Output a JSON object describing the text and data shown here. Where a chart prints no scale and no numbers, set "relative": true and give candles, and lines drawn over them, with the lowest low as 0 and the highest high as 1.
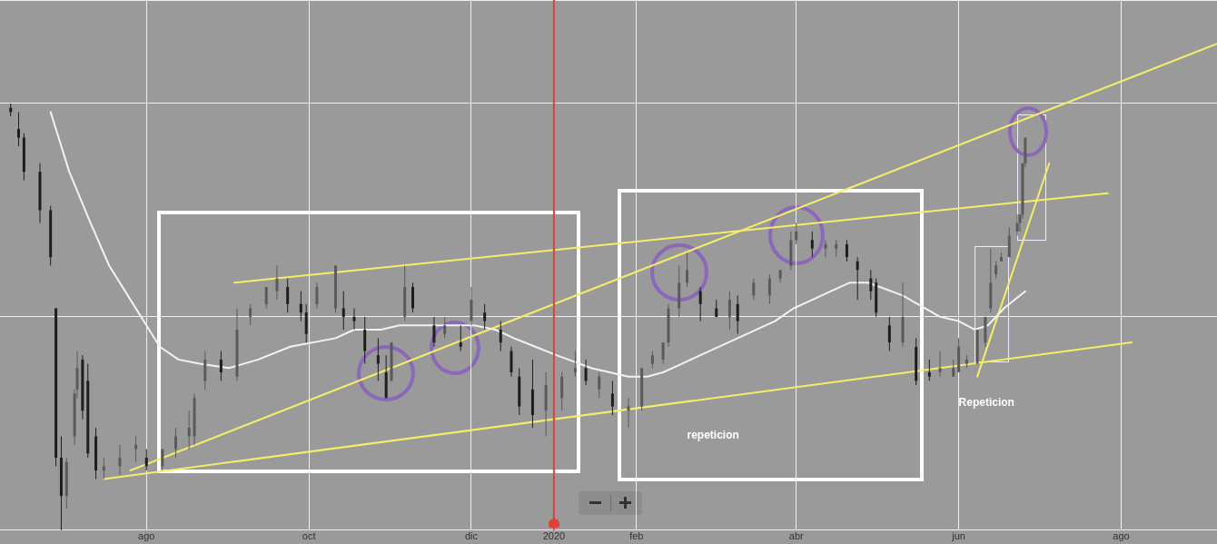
{
  "chart_data": {
    "type": "candlestick",
    "relative": true,
    "grid": true,
    "legend": false,
    "tick_labels": "x",
    "marker": "none",
    "xlim": [
      "2019-06-07",
      "2020-09-06"
    ],
    "xticks": [
      {
        "value": "2019-08-01",
        "label": "ago"
      },
      {
        "value": "2019-10-01",
        "label": "oct"
      },
      {
        "value": "2019-12-01",
        "label": "dic"
      },
      {
        "value": "2020-01-01",
        "label": "2020"
      },
      {
        "value": "2020-02-01",
        "label": "feb"
      },
      {
        "value": "2020-04-01",
        "label": "abr"
      },
      {
        "value": "2020-06-01",
        "label": "jun"
      },
      {
        "value": "2020-08-01",
        "label": "ago"
      }
    ],
    "ref_lines": [
      {
        "axis": "x",
        "value": "2020-01-01",
        "color": "#e0403a"
      }
    ],
    "annotations": [
      "repeticion",
      "Repeticion"
    ],
    "series": [
      {
        "type": "line",
        "color": "#f2f2f2",
        "x": [
          "2019-06-26",
          "2019-06-29",
          "2019-07-03",
          "2019-07-11",
          "2019-07-18",
          "2019-07-26",
          "2019-08-02",
          "2019-08-06",
          "2019-08-13",
          "2019-08-21",
          "2019-09-01",
          "2019-09-12",
          "2019-09-24",
          "2019-10-11",
          "2019-10-18",
          "2019-10-28",
          "2019-11-04",
          "2019-11-18",
          "2019-12-02",
          "2019-12-10",
          "2019-12-17",
          "2019-12-25",
          "2020-01-02",
          "2020-01-15",
          "2020-01-29",
          "2020-02-05",
          "2020-02-11",
          "2020-02-18",
          "2020-02-25",
          "2020-03-10",
          "2020-03-24",
          "2020-03-31",
          "2020-04-07",
          "2020-04-14",
          "2020-04-21",
          "2020-04-28",
          "2020-05-11",
          "2020-05-25",
          "2020-06-01",
          "2020-06-07",
          "2020-06-12",
          "2020-06-18",
          "2020-06-26"
        ],
        "values": [
          0.98,
          0.92,
          0.84,
          0.72,
          0.62,
          0.54,
          0.47,
          0.43,
          0.4,
          0.39,
          0.38,
          0.4,
          0.43,
          0.45,
          0.47,
          0.47,
          0.48,
          0.48,
          0.48,
          0.47,
          0.45,
          0.43,
          0.41,
          0.38,
          0.36,
          0.36,
          0.37,
          0.39,
          0.41,
          0.45,
          0.49,
          0.52,
          0.54,
          0.56,
          0.58,
          0.58,
          0.55,
          0.5,
          0.49,
          0.47,
          0.48,
          0.52,
          0.56
        ]
      },
      {
        "type": "line",
        "color": "#f7ec6a",
        "x": [
          "2019-07-16",
          "2020-08-05"
        ],
        "values": [
          0.12,
          0.44
        ]
      },
      {
        "type": "line",
        "color": "#f7ec6a",
        "x": [
          "2019-07-26",
          "2020-09-06"
        ],
        "values": [
          0.14,
          1.14
        ]
      },
      {
        "type": "line",
        "color": "#f7ec6a",
        "x": [
          "2019-09-03",
          "2020-07-27"
        ],
        "values": [
          0.58,
          0.79
        ]
      },
      {
        "type": "line",
        "color": "#f7ec6a",
        "x": [
          "2020-06-08",
          "2020-07-05"
        ],
        "values": [
          0.36,
          0.86
        ]
      },
      {
        "type": "candlestick",
        "colors": [
          "#1e1e1e",
          "#1e1e1e",
          "#1e1e1e",
          "#1e1e1e",
          "#1e1e1e",
          "#1e1e1e",
          "#1e1e1e",
          "#5a5a5a",
          "#5a5a5a",
          "#5a5a5a",
          "#1e1e1e",
          "#1e1e1e",
          "#1e1e1e",
          "#5a5a5a",
          "#5a5a5a",
          "#5a5a5a",
          "#1e1e1e",
          "#5a5a5a",
          "#5a5a5a",
          "#5a5a5a",
          "#5a5a5a",
          "#5a5a5a",
          "#1e1e1e",
          "#5a5a5a",
          "#5a5a5a",
          "#5a5a5a",
          "#5a5a5a",
          "#1e1e1e",
          "#1e1e1e",
          "#1e1e1e",
          "#5a5a5a",
          "#5a5a5a",
          "#1e1e1e",
          "#1e1e1e",
          "#1e1e1e",
          "#1e1e1e",
          "#1e1e1e",
          "#5a5a5a",
          "#5a5a5a",
          "#1e1e1e",
          "#1e1e1e",
          "#5a5a5a",
          "#1e1e1e",
          "#5a5a5a",
          "#1e1e1e",
          "#1e1e1e",
          "#1e1e1e",
          "#1e1e1e",
          "#1e1e1e",
          "#5a5a5a",
          "#5a5a5a",
          "#5a5a5a",
          "#1e1e1e",
          "#5a5a5a",
          "#1e1e1e",
          "#5a5a5a",
          "#5a5a5a",
          "#5a5a5a",
          "#5a5a5a",
          "#5a5a5a",
          "#5a5a5a",
          "#5a5a5a",
          "#1e1e1e",
          "#1e1e1e",
          "#5a5a5a",
          "#1e1e1e",
          "#5a5a5a",
          "#5a5a5a",
          "#5a5a5a",
          "#5a5a5a",
          "#5a5a5a",
          "#1e1e1e",
          "#5a5a5a",
          "#5a5a5a",
          "#1e1e1e",
          "#1e1e1e",
          "#1e1e1e",
          "#1e1e1e",
          "#1e1e1e",
          "#5a5a5a",
          "#1e1e1e",
          "#1e1e1e",
          "#5a5a5a",
          "#5a5a5a",
          "#5a5a5a",
          "#5a5a5a",
          "#5a5a5a",
          "#5a5a5a",
          "#5a5a5a",
          "#5a5a5a",
          "#5a5a5a",
          "#5a5a5a",
          "#5a5a5a",
          "#5a5a5a",
          "#5a5a5a",
          "#5a5a5a"
        ],
        "x": [
          "2019-06-11",
          "2019-06-14",
          "2019-06-16",
          "2019-06-22",
          "2019-06-26",
          "2019-06-28",
          "2019-06-30",
          "2019-07-02",
          "2019-07-05",
          "2019-07-06",
          "2019-07-08",
          "2019-07-10",
          "2019-07-13",
          "2019-07-16",
          "2019-07-22",
          "2019-07-28",
          "2019-08-01",
          "2019-08-07",
          "2019-08-12",
          "2019-08-17",
          "2019-08-19",
          "2019-08-23",
          "2019-08-29",
          "2019-09-04",
          "2019-09-09",
          "2019-09-15",
          "2019-09-19",
          "2019-09-23",
          "2019-09-28",
          "2019-09-30",
          "2019-10-04",
          "2019-10-11",
          "2019-10-14",
          "2019-10-18",
          "2019-10-22",
          "2019-10-27",
          "2019-10-30",
          "2019-11-01",
          "2019-11-06",
          "2019-11-09",
          "2019-11-17",
          "2019-11-21",
          "2019-11-27",
          "2019-12-01",
          "2019-12-06",
          "2019-12-12",
          "2019-12-16",
          "2019-12-19",
          "2019-12-24",
          "2019-12-29",
          "2020-01-04",
          "2020-01-09",
          "2020-01-13",
          "2020-01-18",
          "2020-01-23",
          "2020-01-29",
          "2020-02-03",
          "2020-02-07",
          "2020-02-11",
          "2020-02-13",
          "2020-02-17",
          "2020-02-20",
          "2020-02-25",
          "2020-03-02",
          "2020-03-07",
          "2020-03-10",
          "2020-03-16",
          "2020-03-22",
          "2020-03-26",
          "2020-03-30",
          "2020-04-01",
          "2020-04-07",
          "2020-04-12",
          "2020-04-16",
          "2020-04-20",
          "2020-04-24",
          "2020-04-29",
          "2020-05-01",
          "2020-05-06",
          "2020-05-11",
          "2020-05-16",
          "2020-05-21",
          "2020-05-25",
          "2020-05-30",
          "2020-06-01",
          "2020-06-04",
          "2020-06-08",
          "2020-06-11",
          "2020-06-13",
          "2020-06-15",
          "2020-06-17",
          "2020-06-20",
          "2020-06-23",
          "2020-06-24",
          "2020-06-25",
          "2020-06-26"
        ],
        "ohlc": [
          [
            0.99,
            1.0,
            0.97,
            0.98
          ],
          [
            0.94,
            0.98,
            0.9,
            0.92
          ],
          [
            0.92,
            0.93,
            0.82,
            0.84
          ],
          [
            0.84,
            0.86,
            0.72,
            0.75
          ],
          [
            0.75,
            0.76,
            0.62,
            0.64
          ],
          [
            0.52,
            0.52,
            0.15,
            0.17
          ],
          [
            0.17,
            0.22,
            0.0,
            0.08
          ],
          [
            0.08,
            0.17,
            0.05,
            0.16
          ],
          [
            0.22,
            0.33,
            0.2,
            0.32
          ],
          [
            0.33,
            0.42,
            0.31,
            0.38
          ],
          [
            0.4,
            0.41,
            0.26,
            0.28
          ],
          [
            0.35,
            0.39,
            0.17,
            0.18
          ],
          [
            0.22,
            0.24,
            0.12,
            0.14
          ],
          [
            0.14,
            0.17,
            0.12,
            0.15
          ],
          [
            0.15,
            0.2,
            0.13,
            0.17
          ],
          [
            0.19,
            0.22,
            0.16,
            0.2
          ],
          [
            0.17,
            0.19,
            0.14,
            0.15
          ],
          [
            0.15,
            0.19,
            0.14,
            0.19
          ],
          [
            0.19,
            0.24,
            0.17,
            0.22
          ],
          [
            0.22,
            0.28,
            0.19,
            0.24
          ],
          [
            0.22,
            0.32,
            0.2,
            0.31
          ],
          [
            0.35,
            0.42,
            0.33,
            0.4
          ],
          [
            0.4,
            0.42,
            0.35,
            0.37
          ],
          [
            0.36,
            0.52,
            0.35,
            0.47
          ],
          [
            0.5,
            0.53,
            0.48,
            0.52
          ],
          [
            0.53,
            0.57,
            0.52,
            0.57
          ],
          [
            0.56,
            0.62,
            0.54,
            0.59
          ],
          [
            0.57,
            0.59,
            0.51,
            0.53
          ],
          [
            0.53,
            0.56,
            0.49,
            0.51
          ],
          [
            0.51,
            0.53,
            0.44,
            0.46
          ],
          [
            0.53,
            0.58,
            0.52,
            0.57
          ],
          [
            0.52,
            0.62,
            0.51,
            0.62
          ],
          [
            0.52,
            0.56,
            0.47,
            0.5
          ],
          [
            0.5,
            0.52,
            0.47,
            0.49
          ],
          [
            0.47,
            0.5,
            0.39,
            0.42
          ],
          [
            0.41,
            0.45,
            0.35,
            0.39
          ],
          [
            0.37,
            0.41,
            0.31,
            0.31
          ],
          [
            0.35,
            0.44,
            0.35,
            0.44
          ],
          [
            0.5,
            0.62,
            0.49,
            0.57
          ],
          [
            0.57,
            0.58,
            0.51,
            0.52
          ],
          [
            0.48,
            0.5,
            0.43,
            0.44
          ],
          [
            0.46,
            0.5,
            0.45,
            0.48
          ],
          [
            0.44,
            0.48,
            0.42,
            0.43
          ],
          [
            0.49,
            0.57,
            0.48,
            0.54
          ],
          [
            0.51,
            0.53,
            0.47,
            0.49
          ],
          [
            0.47,
            0.49,
            0.42,
            0.44
          ],
          [
            0.42,
            0.43,
            0.36,
            0.37
          ],
          [
            0.36,
            0.38,
            0.27,
            0.29
          ],
          [
            0.33,
            0.4,
            0.24,
            0.27
          ],
          [
            0.28,
            0.37,
            0.22,
            0.34
          ],
          [
            0.31,
            0.37,
            0.28,
            0.36
          ],
          [
            0.37,
            0.42,
            0.36,
            0.38
          ],
          [
            0.38,
            0.4,
            0.34,
            0.35
          ],
          [
            0.33,
            0.37,
            0.31,
            0.36
          ],
          [
            0.32,
            0.35,
            0.27,
            0.29
          ],
          [
            0.28,
            0.31,
            0.24,
            0.29
          ],
          [
            0.29,
            0.38,
            0.28,
            0.38
          ],
          [
            0.39,
            0.42,
            0.38,
            0.41
          ],
          [
            0.4,
            0.44,
            0.39,
            0.44
          ],
          [
            0.44,
            0.53,
            0.43,
            0.52
          ],
          [
            0.52,
            0.62,
            0.5,
            0.58
          ],
          [
            0.58,
            0.65,
            0.57,
            0.61
          ],
          [
            0.56,
            0.57,
            0.49,
            0.53
          ],
          [
            0.52,
            0.54,
            0.5,
            0.5
          ],
          [
            0.5,
            0.56,
            0.47,
            0.54
          ],
          [
            0.53,
            0.55,
            0.46,
            0.49
          ],
          [
            0.55,
            0.59,
            0.54,
            0.58
          ],
          [
            0.55,
            0.6,
            0.53,
            0.59
          ],
          [
            0.59,
            0.61,
            0.58,
            0.61
          ],
          [
            0.62,
            0.7,
            0.61,
            0.68
          ],
          [
            0.68,
            0.72,
            0.67,
            0.7
          ],
          [
            0.68,
            0.7,
            0.64,
            0.66
          ],
          [
            0.66,
            0.68,
            0.64,
            0.67
          ],
          [
            0.66,
            0.68,
            0.64,
            0.67
          ],
          [
            0.67,
            0.68,
            0.63,
            0.64
          ],
          [
            0.63,
            0.64,
            0.54,
            0.61
          ],
          [
            0.59,
            0.61,
            0.54,
            0.56
          ],
          [
            0.58,
            0.59,
            0.5,
            0.51
          ],
          [
            0.48,
            0.5,
            0.42,
            0.44
          ],
          [
            0.44,
            0.58,
            0.43,
            0.5
          ],
          [
            0.43,
            0.45,
            0.34,
            0.35
          ],
          [
            0.37,
            0.4,
            0.35,
            0.36
          ],
          [
            0.37,
            0.42,
            0.36,
            0.38
          ],
          [
            0.36,
            0.4,
            0.36,
            0.38
          ],
          [
            0.37,
            0.45,
            0.37,
            0.43
          ],
          [
            0.39,
            0.41,
            0.38,
            0.4
          ],
          [
            0.39,
            0.47,
            0.39,
            0.47
          ],
          [
            0.44,
            0.5,
            0.43,
            0.5
          ],
          [
            0.52,
            0.66,
            0.51,
            0.58
          ],
          [
            0.6,
            0.63,
            0.59,
            0.62
          ],
          [
            0.63,
            0.65,
            0.63,
            0.64
          ],
          [
            0.64,
            0.71,
            0.64,
            0.69
          ],
          [
            0.7,
            0.74,
            0.69,
            0.72
          ],
          [
            0.72,
            0.74,
            0.7,
            0.74
          ],
          [
            0.74,
            0.86,
            0.73,
            0.86
          ],
          [
            0.86,
            0.92,
            0.85,
            0.92
          ]
        ]
      }
    ]
  }
}
